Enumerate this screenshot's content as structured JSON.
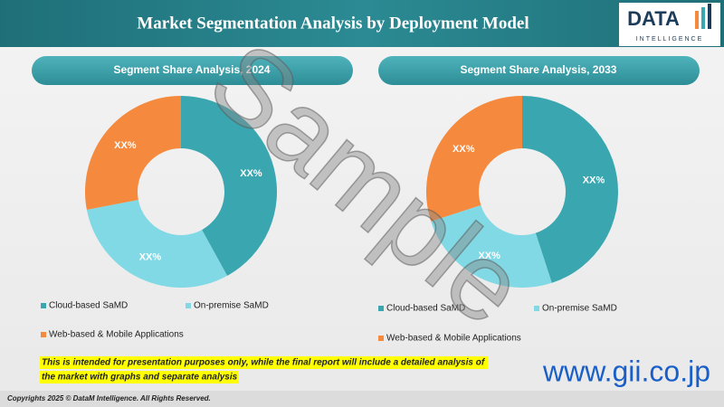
{
  "header": {
    "title": "Market Segmentation Analysis by Deployment Model",
    "logo": "DATA",
    "logo_sub": "INTELLIGENCE"
  },
  "chart_data": [
    {
      "type": "donut",
      "title": "Segment Share Analysis, 2024",
      "categories": [
        "Cloud-based SaMD",
        "On-premise SaMD",
        "Web-based & Mobile Applications"
      ],
      "values": [
        42,
        30,
        28
      ],
      "value_labels": [
        "XX%",
        "XX%",
        "XX%"
      ],
      "colors": [
        "#3aa6b0",
        "#80d9e4",
        "#f58a3e"
      ]
    },
    {
      "type": "donut",
      "title": "Segment Share Analysis, 2033",
      "categories": [
        "Cloud-based SaMD",
        "On-premise SaMD",
        "Web-based & Mobile Applications"
      ],
      "values": [
        45,
        25,
        30
      ],
      "value_labels": [
        "XX%",
        "XX%",
        "XX%"
      ],
      "colors": [
        "#3aa6b0",
        "#80d9e4",
        "#f58a3e"
      ]
    }
  ],
  "watermark": "Sample",
  "footer": {
    "note_line1": "This is intended for presentation purposes only, while the final report will include a detailed analysis of",
    "note_line2": "the market with graphs and separate analysis",
    "website": "www.gii.co.jp",
    "copyright": "Copyrights 2025 © DataM Intelligence. All Rights Reserved."
  }
}
